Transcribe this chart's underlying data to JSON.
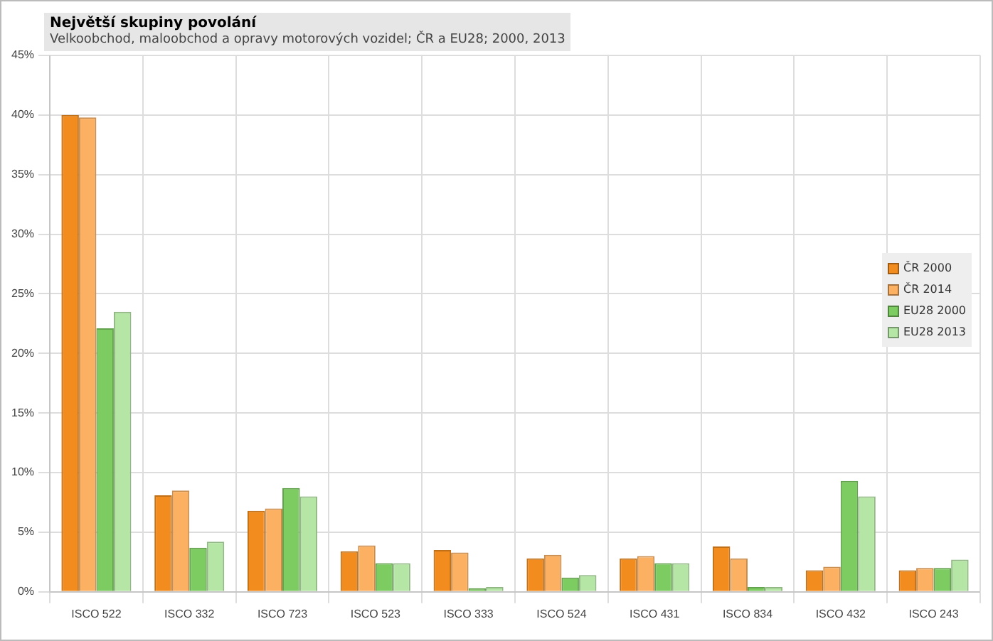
{
  "chart_data": {
    "type": "bar",
    "title": "Největší skupiny povolání",
    "subtitle": "Velkoobchod, maloobchod a opravy motorových  vozidel; ČR a EU28; 2000, 2013",
    "categories": [
      "ISCO 522",
      "ISCO 332",
      "ISCO 723",
      "ISCO 523",
      "ISCO 333",
      "ISCO 524",
      "ISCO 431",
      "ISCO 834",
      "ISCO 432",
      "ISCO 243"
    ],
    "series": [
      {
        "name": "ČR 2000",
        "color": "#f28c1e",
        "values": [
          40.0,
          8.1,
          6.8,
          3.4,
          3.5,
          2.8,
          2.8,
          3.8,
          1.8,
          1.8
        ]
      },
      {
        "name": "ČR 2014",
        "color": "#fbb062",
        "values": [
          39.8,
          8.5,
          7.0,
          3.9,
          3.3,
          3.1,
          3.0,
          2.8,
          2.1,
          2.0
        ]
      },
      {
        "name": "EU28 2000",
        "color": "#7dcc62",
        "values": [
          22.1,
          3.7,
          8.7,
          2.4,
          0.3,
          1.2,
          2.4,
          0.4,
          9.3,
          2.0
        ]
      },
      {
        "name": "EU28 2013",
        "color": "#b5e6a5",
        "values": [
          23.5,
          4.2,
          8.0,
          2.4,
          0.4,
          1.4,
          2.4,
          0.4,
          8.0,
          2.7
        ]
      }
    ],
    "ylim": [
      0,
      45
    ],
    "yticks": [
      {
        "value": 0,
        "label": "0%"
      },
      {
        "value": 5,
        "label": "5%"
      },
      {
        "value": 10,
        "label": "10%"
      },
      {
        "value": 15,
        "label": "15%"
      },
      {
        "value": 20,
        "label": "20%"
      },
      {
        "value": 25,
        "label": "25%"
      },
      {
        "value": 30,
        "label": "30%"
      },
      {
        "value": 35,
        "label": "35%"
      },
      {
        "value": 40,
        "label": "40%"
      },
      {
        "value": 45,
        "label": "45%"
      }
    ],
    "grid": true,
    "legend": "right"
  }
}
